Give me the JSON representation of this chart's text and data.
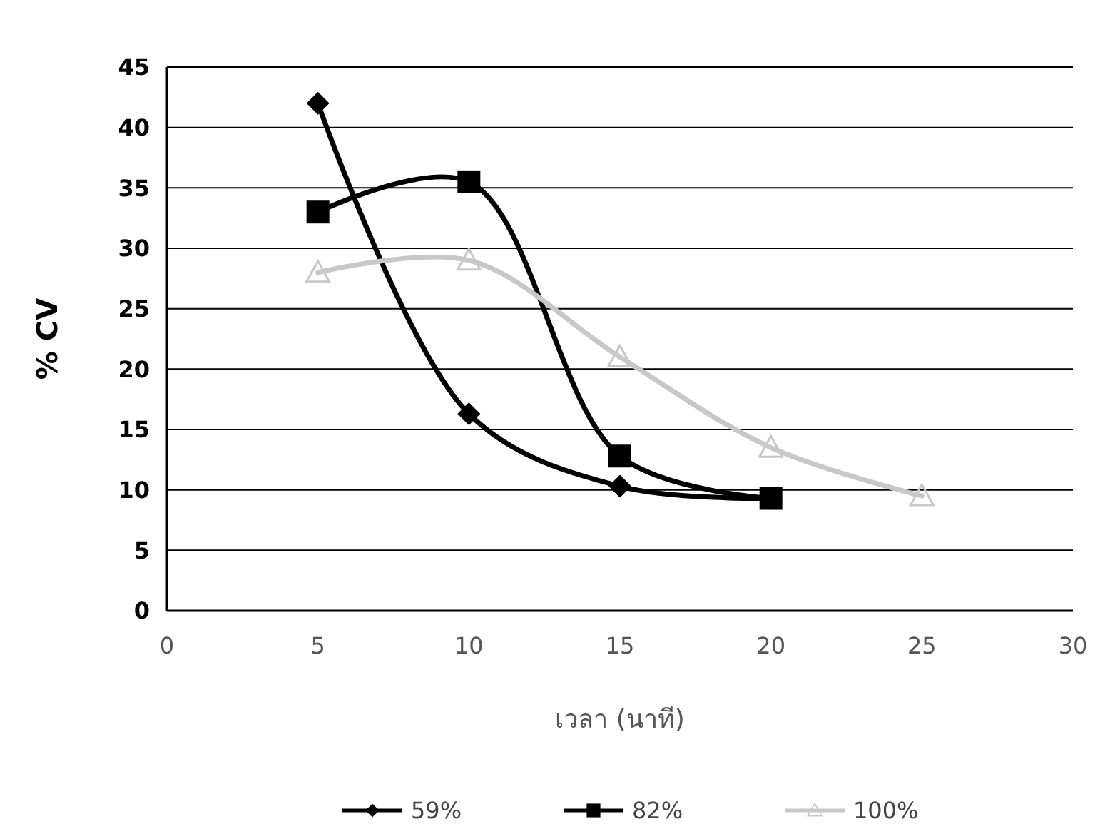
{
  "chart_data": {
    "type": "line",
    "xlabel": "เวลา (นาที)",
    "ylabel": "% CV",
    "xlim": [
      0,
      30
    ],
    "xticks": [
      0,
      5,
      10,
      15,
      20,
      25,
      30
    ],
    "ylim": [
      0,
      45
    ],
    "yticks": [
      0,
      5,
      10,
      15,
      20,
      25,
      30,
      35,
      40,
      45
    ],
    "grid": "y",
    "legend": "bottom",
    "series": [
      {
        "name": "59%",
        "color": "#000000",
        "marker": "diamond",
        "x": [
          5,
          10,
          15,
          20
        ],
        "values": [
          42,
          16.3,
          10.3,
          9.3
        ]
      },
      {
        "name": "82%",
        "color": "#000000",
        "marker": "square",
        "x": [
          5,
          10,
          15,
          20
        ],
        "values": [
          33,
          35.5,
          12.8,
          9.3
        ]
      },
      {
        "name": "100%",
        "color": "#c8c8c8",
        "marker": "triangle",
        "x": [
          5,
          10,
          15,
          20,
          25
        ],
        "values": [
          28,
          29,
          21,
          13.5,
          9.5
        ]
      }
    ]
  }
}
